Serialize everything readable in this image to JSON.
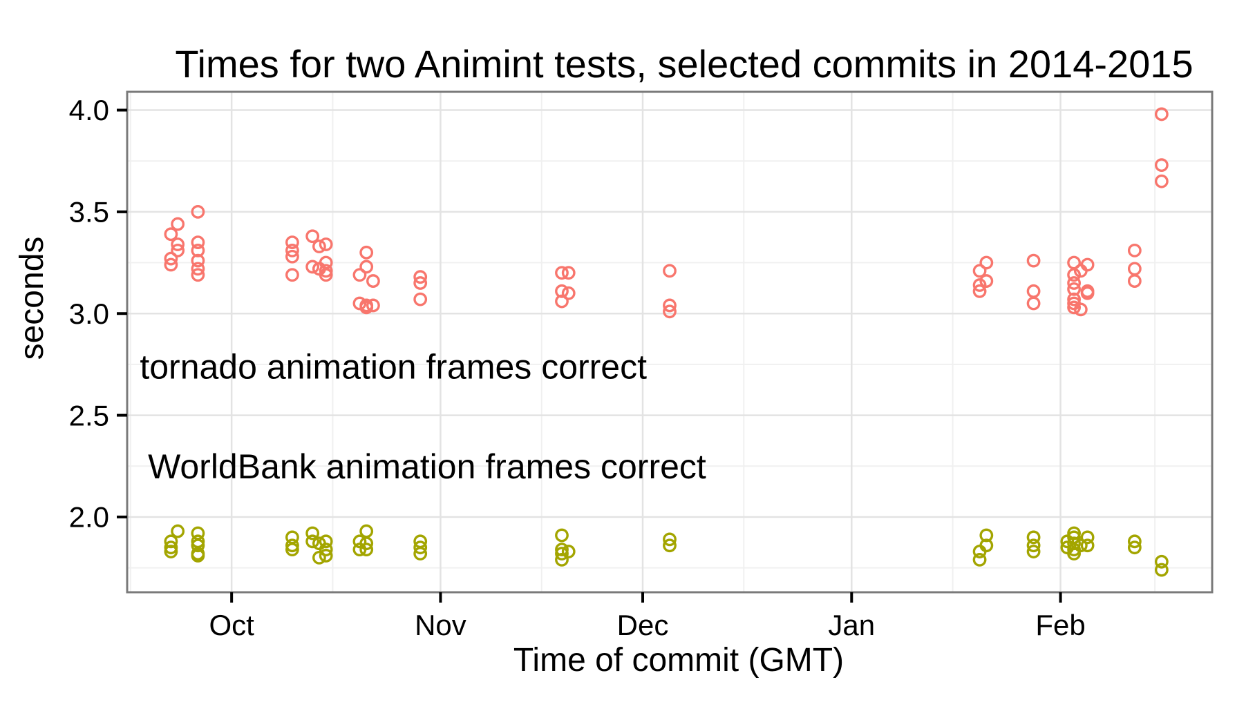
{
  "chart_data": {
    "type": "scatter",
    "title": "Times for two Animint tests, selected commits in 2014-2015",
    "xlabel": "Time of commit (GMT)",
    "ylabel": "seconds",
    "x_domain": [
      "2014-09-15",
      "2015-02-23"
    ],
    "ylim": [
      1.63,
      4.09
    ],
    "x_ticks": [
      {
        "date": "2014-10-01",
        "label": "Oct"
      },
      {
        "date": "2014-11-01",
        "label": "Nov"
      },
      {
        "date": "2014-12-01",
        "label": "Dec"
      },
      {
        "date": "2015-01-01",
        "label": "Jan"
      },
      {
        "date": "2015-02-01",
        "label": "Feb"
      }
    ],
    "x_minor_dates": [
      "2014-09-16",
      "2014-10-16",
      "2014-11-16",
      "2014-12-16",
      "2015-01-16",
      "2015-02-15"
    ],
    "y_ticks": [
      {
        "value": 4.0,
        "label": "4.0"
      },
      {
        "value": 3.5,
        "label": "3.5"
      },
      {
        "value": 3.0,
        "label": "3.0"
      },
      {
        "value": 2.5,
        "label": "2.5"
      },
      {
        "value": 2.0,
        "label": "2.0"
      }
    ],
    "y_minor": [
      3.75,
      3.25,
      2.75,
      2.25,
      1.75
    ],
    "grid": {
      "background": "#ffffff",
      "major_color": "#e3e3e3",
      "minor_color": "#f0f0f0",
      "panel_border": "#7a7a7a",
      "tick_color": "#000000"
    },
    "series": [
      {
        "id": "tornado",
        "name": "tornado animation frames correct",
        "color": "#F8766D",
        "marker": "open-circle",
        "label_pos": {
          "date": "2014-10-25",
          "seconds": 2.74
        },
        "points": [
          [
            "2014-09-26",
            3.5
          ],
          [
            "2014-09-23",
            3.44
          ],
          [
            "2014-09-22",
            3.39
          ],
          [
            "2014-09-23",
            3.34
          ],
          [
            "2014-09-23",
            3.31
          ],
          [
            "2014-09-22",
            3.27
          ],
          [
            "2014-09-22",
            3.24
          ],
          [
            "2014-09-26",
            3.35
          ],
          [
            "2014-09-26",
            3.31
          ],
          [
            "2014-09-26",
            3.26
          ],
          [
            "2014-09-26",
            3.22
          ],
          [
            "2014-09-26",
            3.19
          ],
          [
            "2014-10-10",
            3.35
          ],
          [
            "2014-10-10",
            3.31
          ],
          [
            "2014-10-10",
            3.28
          ],
          [
            "2014-10-10",
            3.19
          ],
          [
            "2014-10-13",
            3.38
          ],
          [
            "2014-10-14",
            3.33
          ],
          [
            "2014-10-15",
            3.34
          ],
          [
            "2014-10-13",
            3.23
          ],
          [
            "2014-10-14",
            3.22
          ],
          [
            "2014-10-14",
            3.22
          ],
          [
            "2014-10-15",
            3.25
          ],
          [
            "2014-10-15",
            3.21
          ],
          [
            "2014-10-15",
            3.19
          ],
          [
            "2014-10-21",
            3.3
          ],
          [
            "2014-10-21",
            3.23
          ],
          [
            "2014-10-20",
            3.19
          ],
          [
            "2014-10-22",
            3.16
          ],
          [
            "2014-10-20",
            3.05
          ],
          [
            "2014-10-21",
            3.04
          ],
          [
            "2014-10-21",
            3.03
          ],
          [
            "2014-10-22",
            3.04
          ],
          [
            "2014-10-29",
            3.18
          ],
          [
            "2014-10-29",
            3.15
          ],
          [
            "2014-10-29",
            3.07
          ],
          [
            "2014-11-19",
            3.2
          ],
          [
            "2014-11-20",
            3.2
          ],
          [
            "2014-11-19",
            3.11
          ],
          [
            "2014-11-20",
            3.1
          ],
          [
            "2014-11-19",
            3.06
          ],
          [
            "2014-12-05",
            3.21
          ],
          [
            "2014-12-05",
            3.04
          ],
          [
            "2014-12-05",
            3.01
          ],
          [
            "2015-01-21",
            3.25
          ],
          [
            "2015-01-20",
            3.21
          ],
          [
            "2015-01-21",
            3.16
          ],
          [
            "2015-01-20",
            3.14
          ],
          [
            "2015-01-20",
            3.11
          ],
          [
            "2015-01-28",
            3.26
          ],
          [
            "2015-01-28",
            3.11
          ],
          [
            "2015-01-28",
            3.05
          ],
          [
            "2015-02-03",
            3.25
          ],
          [
            "2015-02-05",
            3.24
          ],
          [
            "2015-02-04",
            3.21
          ],
          [
            "2015-02-03",
            3.19
          ],
          [
            "2015-02-03",
            3.15
          ],
          [
            "2015-02-03",
            3.12
          ],
          [
            "2015-02-05",
            3.11
          ],
          [
            "2015-02-05",
            3.1
          ],
          [
            "2015-02-03",
            3.07
          ],
          [
            "2015-02-03",
            3.05
          ],
          [
            "2015-02-03",
            3.03
          ],
          [
            "2015-02-04",
            3.02
          ],
          [
            "2015-02-12",
            3.31
          ],
          [
            "2015-02-12",
            3.22
          ],
          [
            "2015-02-12",
            3.16
          ],
          [
            "2015-02-16",
            3.98
          ],
          [
            "2015-02-16",
            3.73
          ],
          [
            "2015-02-16",
            3.65
          ]
        ]
      },
      {
        "id": "worldbank",
        "name": "WorldBank animation frames correct",
        "color": "#A3A500",
        "marker": "open-circle",
        "label_pos": {
          "date": "2014-10-30",
          "seconds": 2.25
        },
        "points": [
          [
            "2014-09-23",
            1.93
          ],
          [
            "2014-09-22",
            1.88
          ],
          [
            "2014-09-22",
            1.85
          ],
          [
            "2014-09-22",
            1.83
          ],
          [
            "2014-09-26",
            1.92
          ],
          [
            "2014-09-26",
            1.88
          ],
          [
            "2014-09-26",
            1.86
          ],
          [
            "2014-09-26",
            1.82
          ],
          [
            "2014-09-26",
            1.81
          ],
          [
            "2014-10-10",
            1.9
          ],
          [
            "2014-10-10",
            1.86
          ],
          [
            "2014-10-10",
            1.84
          ],
          [
            "2014-10-13",
            1.92
          ],
          [
            "2014-10-13",
            1.88
          ],
          [
            "2014-10-14",
            1.87
          ],
          [
            "2014-10-14",
            1.8
          ],
          [
            "2014-10-15",
            1.88
          ],
          [
            "2014-10-15",
            1.84
          ],
          [
            "2014-10-15",
            1.81
          ],
          [
            "2014-10-21",
            1.93
          ],
          [
            "2014-10-20",
            1.88
          ],
          [
            "2014-10-21",
            1.87
          ],
          [
            "2014-10-20",
            1.84
          ],
          [
            "2014-10-21",
            1.84
          ],
          [
            "2014-10-29",
            1.88
          ],
          [
            "2014-10-29",
            1.85
          ],
          [
            "2014-10-29",
            1.82
          ],
          [
            "2014-11-19",
            1.91
          ],
          [
            "2014-11-19",
            1.84
          ],
          [
            "2014-11-20",
            1.83
          ],
          [
            "2014-11-19",
            1.79
          ],
          [
            "2014-11-19",
            1.82
          ],
          [
            "2014-12-05",
            1.89
          ],
          [
            "2014-12-05",
            1.86
          ],
          [
            "2015-01-21",
            1.91
          ],
          [
            "2015-01-21",
            1.86
          ],
          [
            "2015-01-20",
            1.83
          ],
          [
            "2015-01-20",
            1.79
          ],
          [
            "2015-01-28",
            1.9
          ],
          [
            "2015-01-28",
            1.86
          ],
          [
            "2015-01-28",
            1.83
          ],
          [
            "2015-02-03",
            1.92
          ],
          [
            "2015-02-03",
            1.9
          ],
          [
            "2015-02-02",
            1.88
          ],
          [
            "2015-02-03",
            1.87
          ],
          [
            "2015-02-02",
            1.85
          ],
          [
            "2015-02-03",
            1.84
          ],
          [
            "2015-02-03",
            1.82
          ],
          [
            "2015-02-04",
            1.86
          ],
          [
            "2015-02-05",
            1.9
          ],
          [
            "2015-02-05",
            1.86
          ],
          [
            "2015-02-12",
            1.88
          ],
          [
            "2015-02-12",
            1.85
          ],
          [
            "2015-02-16",
            1.78
          ],
          [
            "2015-02-16",
            1.74
          ]
        ]
      }
    ]
  }
}
